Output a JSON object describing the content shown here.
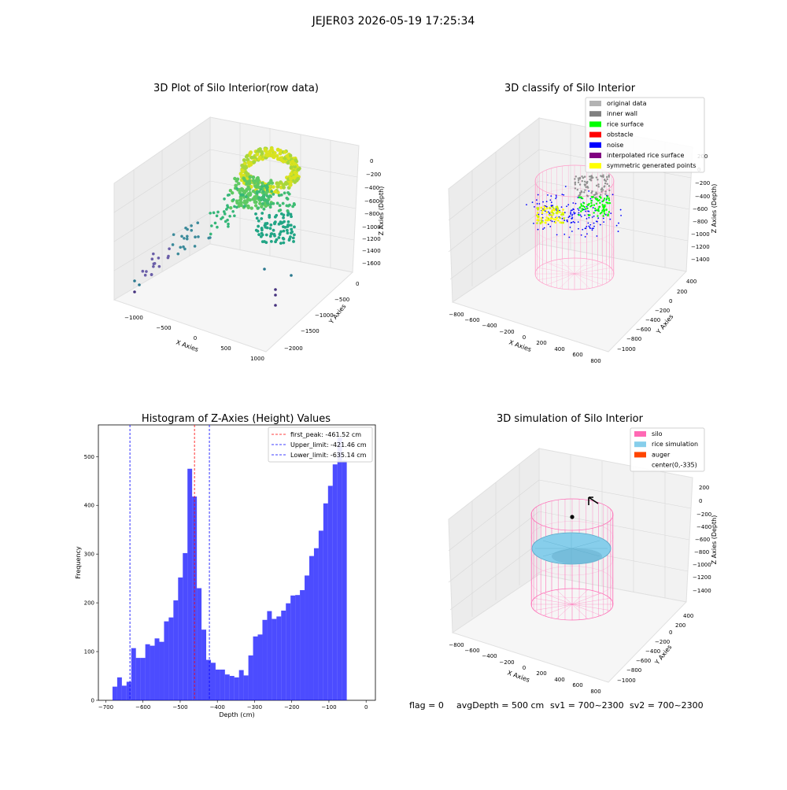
{
  "figure": {
    "suptitle": "JEJER03 2026-05-19 17:25:34",
    "status_line": {
      "flag": "flag = 0",
      "avg_depth": "avgDepth = 500 cm",
      "sv1": "sv1 = 700~2300",
      "sv2": "sv2 = 700~2300"
    }
  },
  "panels": {
    "raw": {
      "title": "3D Plot of Silo Interior(row data)",
      "xlabel": "X Axies",
      "ylabel": "Y Axies",
      "zlabel": "Z Axies (Depth)",
      "xticks": [
        "−1000",
        "−500",
        "0",
        "500",
        "1000"
      ],
      "yticks": [
        "0",
        "−500",
        "−1000",
        "−1500",
        "−2000"
      ],
      "zticks": [
        "0",
        "−200",
        "−400",
        "−600",
        "−800",
        "−1000",
        "−1200",
        "−1400",
        "−1600"
      ]
    },
    "classify": {
      "title": "3D classify of Silo Interior",
      "xlabel": "X Axies",
      "ylabel": "Y Axies",
      "zlabel": "Z Axies (Depth)",
      "xticks": [
        "−800",
        "−600",
        "−400",
        "−200",
        "0",
        "200",
        "400",
        "600",
        "800"
      ],
      "yticks": [
        "400",
        "200",
        "0",
        "−200",
        "−400",
        "−600",
        "−800",
        "−1000"
      ],
      "zticks": [
        "200",
        "0",
        "−200",
        "−400",
        "−600",
        "−800",
        "−1000",
        "−1200",
        "−1400"
      ],
      "legend": [
        {
          "label": "original data",
          "color": "#b3b3b3"
        },
        {
          "label": "inner wall",
          "color": "#808080"
        },
        {
          "label": "rice surface",
          "color": "#00ff00"
        },
        {
          "label": "obstacle",
          "color": "#ff0000"
        },
        {
          "label": "noise",
          "color": "#0000ff"
        },
        {
          "label": "interpolated rice surface",
          "color": "#800080"
        },
        {
          "label": "symmetric generated points",
          "color": "#ffff00"
        }
      ]
    },
    "simulation": {
      "title": "3D simulation of Silo Interior",
      "xlabel": "X Axies",
      "ylabel": "Y Axies",
      "zlabel": "Z Axies (Depth)",
      "xticks": [
        "−800",
        "−600",
        "−400",
        "−200",
        "0",
        "200",
        "400",
        "600",
        "800"
      ],
      "yticks": [
        "400",
        "200",
        "0",
        "−200",
        "−400",
        "−600",
        "−800",
        "−1000"
      ],
      "zticks": [
        "200",
        "0",
        "−200",
        "−400",
        "−600",
        "−800",
        "−1000",
        "−1200",
        "−1400"
      ],
      "legend": [
        {
          "label": "silo",
          "color": "#ff69b4"
        },
        {
          "label": "rice simulation",
          "color": "#87ceeb"
        },
        {
          "label": "auger",
          "color": "#ff4500"
        },
        {
          "label": "center(0,-335)",
          "color": "none"
        }
      ]
    }
  },
  "chart_data": {
    "type": "bar",
    "title": "Histogram of Z-Axies (Height) Values",
    "xlabel": "Depth (cm)",
    "ylabel": "Frequency",
    "xlim": [
      -720,
      25
    ],
    "ylim": [
      0,
      565
    ],
    "xticks": [
      -700,
      -600,
      -500,
      -400,
      -300,
      -200,
      -100,
      0
    ],
    "yticks": [
      0,
      100,
      200,
      300,
      400,
      500
    ],
    "bar_color": "#0000ff",
    "bin_start": -682,
    "bin_width": 12.6,
    "values": [
      28,
      47,
      30,
      38,
      107,
      87,
      87,
      115,
      112,
      127,
      120,
      162,
      170,
      205,
      252,
      302,
      475,
      418,
      230,
      145,
      83,
      77,
      63,
      63,
      53,
      50,
      47,
      62,
      51,
      92,
      131,
      135,
      165,
      183,
      167,
      172,
      184,
      199,
      215,
      216,
      226,
      256,
      296,
      312,
      348,
      404,
      440,
      484,
      539,
      492
    ],
    "vlines": [
      {
        "x": -461.52,
        "label": "first_peak: -461.52 cm",
        "color": "#ff0000"
      },
      {
        "x": -421.46,
        "label": "Upper_limit: -421.46 cm",
        "color": "#0000ff"
      },
      {
        "x": -635.14,
        "label": "Lower_limit: -635.14 cm",
        "color": "#0000ff"
      }
    ]
  }
}
